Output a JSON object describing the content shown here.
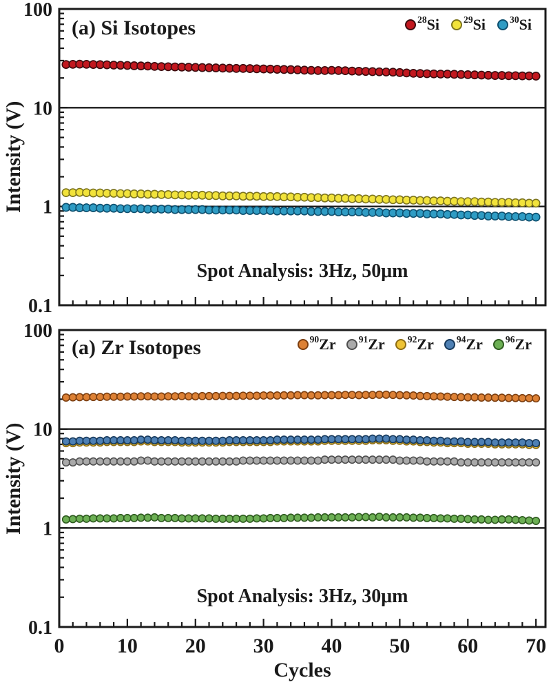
{
  "figure": {
    "xlabel": "Cycles",
    "ylabel": "Intensity (V)"
  },
  "chart_data": [
    {
      "type": "scatter",
      "title": "(a) Si Isotopes",
      "annotation": "Spot Analysis: 3Hz, 50μm",
      "ylabel": "Intensity (V)",
      "xlabel": "",
      "yscale": "log",
      "ylim": [
        0.1,
        100
      ],
      "xlim": [
        0,
        71.4
      ],
      "grid_decade_lines": [
        10,
        1
      ],
      "y_tick_values": [
        100,
        10,
        1,
        0.1
      ],
      "y_tick_labels": [
        "100",
        "10",
        "1",
        "0.1"
      ],
      "x_major_ticks": [
        0,
        10,
        20,
        30,
        40,
        50,
        60,
        70
      ],
      "x_tick_labels": [
        "0",
        "10",
        "20",
        "30",
        "40",
        "50",
        "60",
        "70"
      ],
      "legend_position": "top-right",
      "x": [
        1,
        2,
        3,
        4,
        5,
        6,
        7,
        8,
        9,
        10,
        11,
        12,
        13,
        14,
        15,
        16,
        17,
        18,
        19,
        20,
        21,
        22,
        23,
        24,
        25,
        26,
        27,
        28,
        29,
        30,
        31,
        32,
        33,
        34,
        35,
        36,
        37,
        38,
        39,
        40,
        41,
        42,
        43,
        44,
        45,
        46,
        47,
        48,
        49,
        50,
        51,
        52,
        53,
        54,
        55,
        56,
        57,
        58,
        59,
        60,
        61,
        62,
        63,
        64,
        65,
        66,
        67,
        68,
        69,
        70
      ],
      "series": [
        {
          "name": "28Si",
          "mass": "28",
          "element": "Si",
          "color": "#c2181f",
          "edge": "#3a0b0e",
          "values": [
            27.4,
            27.5,
            27.6,
            27.5,
            27.4,
            27.3,
            27.2,
            27.0,
            26.9,
            26.8,
            26.6,
            26.5,
            26.4,
            26.2,
            26.1,
            26.0,
            25.9,
            25.8,
            25.7,
            25.6,
            25.5,
            25.4,
            25.3,
            25.2,
            25.1,
            25.0,
            25.0,
            24.9,
            24.8,
            24.7,
            24.6,
            24.5,
            24.4,
            24.3,
            24.2,
            24.0,
            23.9,
            23.8,
            23.8,
            23.9,
            23.8,
            23.7,
            23.5,
            23.4,
            23.3,
            23.2,
            23.1,
            23.0,
            22.9,
            22.7,
            22.5,
            22.3,
            22.2,
            22.1,
            22.0,
            21.9,
            21.9,
            21.8,
            21.7,
            21.6,
            21.5,
            21.4,
            21.3,
            21.2,
            21.2,
            21.1,
            21.1,
            21.0,
            21.0,
            20.9
          ]
        },
        {
          "name": "29Si",
          "mass": "29",
          "element": "Si",
          "color": "#f2e33b",
          "edge": "#7c741e",
          "values": [
            1.38,
            1.38,
            1.39,
            1.38,
            1.37,
            1.37,
            1.36,
            1.36,
            1.35,
            1.35,
            1.34,
            1.34,
            1.33,
            1.33,
            1.32,
            1.32,
            1.31,
            1.31,
            1.3,
            1.3,
            1.3,
            1.29,
            1.29,
            1.28,
            1.28,
            1.28,
            1.27,
            1.27,
            1.27,
            1.26,
            1.26,
            1.26,
            1.25,
            1.25,
            1.24,
            1.24,
            1.23,
            1.23,
            1.22,
            1.22,
            1.21,
            1.21,
            1.2,
            1.2,
            1.19,
            1.19,
            1.18,
            1.18,
            1.17,
            1.17,
            1.16,
            1.16,
            1.15,
            1.15,
            1.14,
            1.14,
            1.13,
            1.13,
            1.12,
            1.12,
            1.12,
            1.11,
            1.11,
            1.1,
            1.1,
            1.1,
            1.09,
            1.09,
            1.08,
            1.08
          ]
        },
        {
          "name": "30Si",
          "mass": "30",
          "element": "Si",
          "color": "#2f9cc4",
          "edge": "#0e4f6e",
          "values": [
            0.98,
            0.98,
            0.97,
            0.97,
            0.97,
            0.96,
            0.96,
            0.96,
            0.95,
            0.95,
            0.95,
            0.95,
            0.94,
            0.94,
            0.94,
            0.94,
            0.93,
            0.93,
            0.93,
            0.93,
            0.93,
            0.92,
            0.92,
            0.92,
            0.92,
            0.92,
            0.91,
            0.91,
            0.91,
            0.91,
            0.91,
            0.9,
            0.9,
            0.9,
            0.9,
            0.9,
            0.89,
            0.89,
            0.89,
            0.89,
            0.88,
            0.88,
            0.88,
            0.88,
            0.87,
            0.87,
            0.87,
            0.86,
            0.86,
            0.86,
            0.85,
            0.85,
            0.85,
            0.84,
            0.84,
            0.84,
            0.83,
            0.83,
            0.82,
            0.82,
            0.81,
            0.81,
            0.8,
            0.8,
            0.8,
            0.79,
            0.79,
            0.79,
            0.78,
            0.78
          ]
        }
      ]
    },
    {
      "type": "scatter",
      "title": "(a) Zr Isotopes",
      "annotation": "Spot Analysis: 3Hz, 30μm",
      "ylabel": "Intensity (V)",
      "xlabel": "Cycles",
      "yscale": "log",
      "ylim": [
        0.1,
        100
      ],
      "xlim": [
        0,
        71.4
      ],
      "grid_decade_lines": [
        10,
        1
      ],
      "y_tick_values": [
        100,
        10,
        1,
        0.1
      ],
      "y_tick_labels": [
        "100",
        "10",
        "1",
        "0.1"
      ],
      "x_major_ticks": [
        0,
        10,
        20,
        30,
        40,
        50,
        60,
        70
      ],
      "x_tick_labels": [
        "0",
        "10",
        "20",
        "30",
        "40",
        "50",
        "60",
        "70"
      ],
      "legend_position": "top-right",
      "x": [
        1,
        2,
        3,
        4,
        5,
        6,
        7,
        8,
        9,
        10,
        11,
        12,
        13,
        14,
        15,
        16,
        17,
        18,
        19,
        20,
        21,
        22,
        23,
        24,
        25,
        26,
        27,
        28,
        29,
        30,
        31,
        32,
        33,
        34,
        35,
        36,
        37,
        38,
        39,
        40,
        41,
        42,
        43,
        44,
        45,
        46,
        47,
        48,
        49,
        50,
        51,
        52,
        53,
        54,
        55,
        56,
        57,
        58,
        59,
        60,
        61,
        62,
        63,
        64,
        65,
        66,
        67,
        68,
        69,
        70
      ],
      "series": [
        {
          "name": "90Zr",
          "mass": "90",
          "element": "Zr",
          "color": "#dd8135",
          "edge": "#7b3e10",
          "values": [
            20.8,
            20.9,
            21.0,
            21.0,
            21.1,
            21.1,
            21.2,
            21.2,
            21.2,
            21.3,
            21.3,
            21.4,
            21.4,
            21.3,
            21.3,
            21.4,
            21.4,
            21.5,
            21.4,
            21.4,
            21.5,
            21.5,
            21.5,
            21.6,
            21.6,
            21.6,
            21.7,
            21.7,
            21.7,
            21.8,
            21.8,
            21.8,
            21.9,
            21.9,
            22.0,
            22.0,
            21.9,
            21.9,
            22.0,
            22.0,
            22.0,
            22.1,
            22.1,
            22.0,
            22.1,
            22.1,
            22.2,
            22.2,
            22.1,
            22.0,
            21.9,
            21.8,
            21.6,
            21.5,
            21.4,
            21.3,
            21.2,
            21.1,
            21.0,
            20.9,
            20.9,
            20.8,
            20.8,
            20.7,
            20.7,
            20.6,
            20.6,
            20.5,
            20.5,
            20.4
          ]
        },
        {
          "name": "91Zr",
          "mass": "91",
          "element": "Zr",
          "color": "#aaaaaa",
          "edge": "#4f4f4f",
          "values": [
            4.6,
            4.6,
            4.7,
            4.7,
            4.7,
            4.7,
            4.7,
            4.7,
            4.7,
            4.7,
            4.7,
            4.8,
            4.8,
            4.7,
            4.7,
            4.7,
            4.7,
            4.7,
            4.7,
            4.7,
            4.7,
            4.7,
            4.7,
            4.7,
            4.7,
            4.7,
            4.8,
            4.8,
            4.8,
            4.8,
            4.8,
            4.8,
            4.8,
            4.8,
            4.8,
            4.8,
            4.8,
            4.8,
            4.9,
            4.9,
            4.9,
            4.9,
            4.9,
            4.9,
            4.9,
            4.9,
            4.9,
            4.9,
            4.9,
            4.8,
            4.8,
            4.8,
            4.8,
            4.7,
            4.7,
            4.7,
            4.7,
            4.7,
            4.6,
            4.6,
            4.6,
            4.6,
            4.6,
            4.6,
            4.6,
            4.6,
            4.6,
            4.6,
            4.6,
            4.6
          ]
        },
        {
          "name": "92Zr",
          "mass": "92",
          "element": "Zr",
          "color": "#eec335",
          "edge": "#8c6c14",
          "values": [
            7.2,
            7.2,
            7.3,
            7.3,
            7.3,
            7.3,
            7.4,
            7.4,
            7.4,
            7.4,
            7.4,
            7.5,
            7.5,
            7.4,
            7.4,
            7.4,
            7.4,
            7.3,
            7.3,
            7.3,
            7.3,
            7.3,
            7.3,
            7.3,
            7.4,
            7.4,
            7.4,
            7.4,
            7.4,
            7.4,
            7.4,
            7.5,
            7.5,
            7.5,
            7.5,
            7.5,
            7.5,
            7.5,
            7.6,
            7.6,
            7.6,
            7.6,
            7.6,
            7.6,
            7.6,
            7.7,
            7.7,
            7.7,
            7.6,
            7.6,
            7.5,
            7.5,
            7.4,
            7.4,
            7.3,
            7.3,
            7.2,
            7.2,
            7.2,
            7.1,
            7.1,
            7.1,
            7.1,
            7.0,
            7.0,
            7.0,
            7.0,
            7.0,
            6.9,
            6.9
          ]
        },
        {
          "name": "94Zr",
          "mass": "94",
          "element": "Zr",
          "color": "#4e80b4",
          "edge": "#16395c",
          "values": [
            7.5,
            7.5,
            7.6,
            7.6,
            7.6,
            7.6,
            7.7,
            7.7,
            7.7,
            7.7,
            7.7,
            7.8,
            7.8,
            7.7,
            7.7,
            7.7,
            7.7,
            7.6,
            7.6,
            7.6,
            7.6,
            7.6,
            7.6,
            7.6,
            7.7,
            7.7,
            7.7,
            7.7,
            7.7,
            7.7,
            7.7,
            7.8,
            7.8,
            7.8,
            7.8,
            7.8,
            7.8,
            7.8,
            7.9,
            7.9,
            7.9,
            7.9,
            7.9,
            7.9,
            7.9,
            8.0,
            8.0,
            8.0,
            7.9,
            7.9,
            7.8,
            7.8,
            7.7,
            7.7,
            7.6,
            7.6,
            7.5,
            7.5,
            7.5,
            7.4,
            7.4,
            7.4,
            7.4,
            7.3,
            7.3,
            7.3,
            7.3,
            7.3,
            7.2,
            7.2
          ]
        },
        {
          "name": "96Zr",
          "mass": "96",
          "element": "Zr",
          "color": "#6caf54",
          "edge": "#2e5a1f",
          "values": [
            1.22,
            1.23,
            1.24,
            1.24,
            1.25,
            1.25,
            1.25,
            1.25,
            1.26,
            1.26,
            1.26,
            1.27,
            1.27,
            1.28,
            1.26,
            1.26,
            1.26,
            1.25,
            1.25,
            1.25,
            1.25,
            1.25,
            1.24,
            1.24,
            1.24,
            1.24,
            1.24,
            1.24,
            1.25,
            1.25,
            1.26,
            1.26,
            1.26,
            1.27,
            1.27,
            1.27,
            1.27,
            1.28,
            1.28,
            1.28,
            1.28,
            1.28,
            1.28,
            1.29,
            1.29,
            1.28,
            1.3,
            1.28,
            1.28,
            1.28,
            1.28,
            1.27,
            1.27,
            1.26,
            1.26,
            1.25,
            1.25,
            1.24,
            1.24,
            1.23,
            1.22,
            1.22,
            1.21,
            1.21,
            1.22,
            1.22,
            1.21,
            1.2,
            1.19,
            1.18
          ]
        }
      ]
    }
  ]
}
